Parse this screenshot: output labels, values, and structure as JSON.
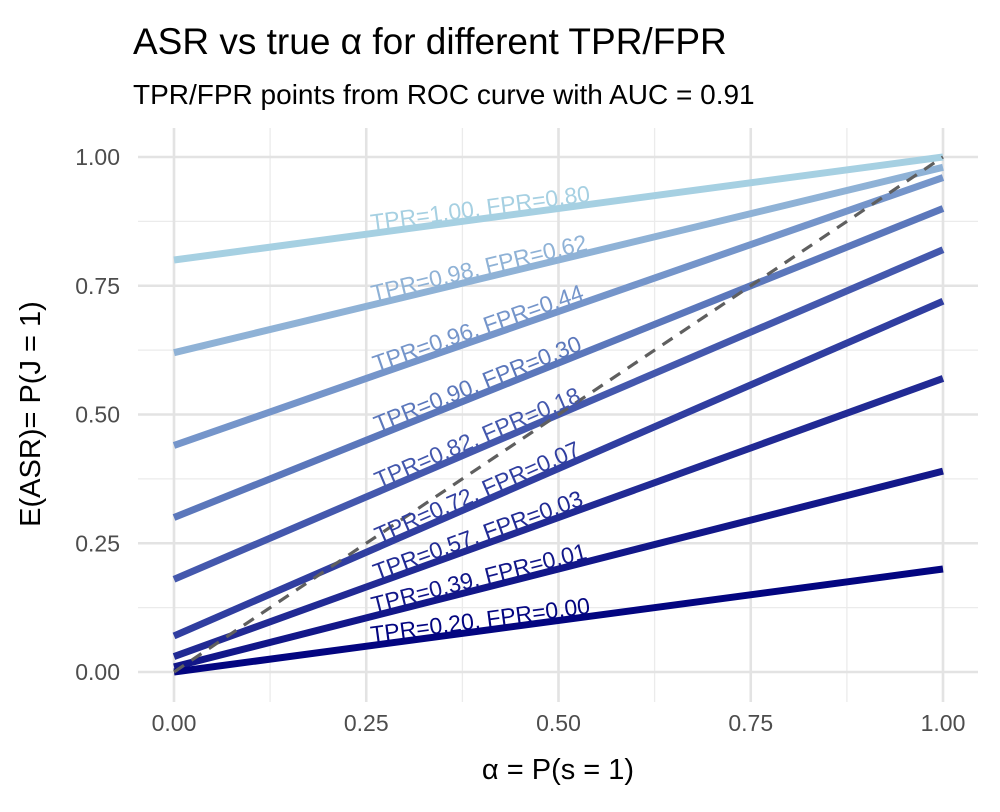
{
  "chart_data": {
    "type": "line",
    "title": "ASR vs true α for different TPR/FPR",
    "subtitle": "TPR/FPR points from ROC curve with AUC = 0.91",
    "xlabel": "α = P(s = 1)",
    "ylabel": "E(ASR)= P(J = 1)",
    "xlim": [
      0,
      1
    ],
    "ylim": [
      0,
      1
    ],
    "x_ticks": [
      "0.00",
      "0.25",
      "0.50",
      "0.75",
      "1.00"
    ],
    "y_ticks": [
      "0.00",
      "0.25",
      "0.50",
      "0.75",
      "1.00"
    ],
    "grid": true,
    "reference_line": {
      "name": "y = x",
      "style": "dashed",
      "color": "#5f5f5f",
      "x": [
        0,
        1
      ],
      "y": [
        0,
        1
      ]
    },
    "series": [
      {
        "name": "TPR=1.00, FPR=0.80",
        "label": "TPR=1.00, FPR=0.80",
        "tpr": 1.0,
        "fpr": 0.8,
        "color": "#a6d0e2",
        "x": [
          0,
          1
        ],
        "y": [
          0.8,
          1.0
        ]
      },
      {
        "name": "TPR=0.98, FPR=0.62",
        "label": "TPR=0.98, FPR=0.62",
        "tpr": 0.98,
        "fpr": 0.62,
        "color": "#8fb2d6",
        "x": [
          0,
          1
        ],
        "y": [
          0.62,
          0.98
        ]
      },
      {
        "name": "TPR=0.96, FPR=0.44",
        "label": "TPR=0.96, FPR=0.44",
        "tpr": 0.96,
        "fpr": 0.44,
        "color": "#7595ca",
        "x": [
          0,
          1
        ],
        "y": [
          0.44,
          0.96
        ]
      },
      {
        "name": "TPR=0.90, FPR=0.30",
        "label": "TPR=0.90, FPR=0.30",
        "tpr": 0.9,
        "fpr": 0.3,
        "color": "#5b77bb",
        "x": [
          0,
          1
        ],
        "y": [
          0.3,
          0.9
        ]
      },
      {
        "name": "TPR=0.82, FPR=0.18",
        "label": "TPR=0.82, FPR=0.18",
        "tpr": 0.82,
        "fpr": 0.18,
        "color": "#4458ad",
        "x": [
          0,
          1
        ],
        "y": [
          0.18,
          0.82
        ]
      },
      {
        "name": "TPR=0.72, FPR=0.07",
        "label": "TPR=0.72, FPR=0.07",
        "tpr": 0.72,
        "fpr": 0.07,
        "color": "#303ea0",
        "x": [
          0,
          1
        ],
        "y": [
          0.07,
          0.72
        ]
      },
      {
        "name": "TPR=0.57, FPR=0.03",
        "label": "TPR=0.57, FPR=0.03",
        "tpr": 0.57,
        "fpr": 0.03,
        "color": "#212a94",
        "x": [
          0,
          1
        ],
        "y": [
          0.03,
          0.57
        ]
      },
      {
        "name": "TPR=0.39, FPR=0.01",
        "label": "TPR=0.39, FPR=0.01",
        "tpr": 0.39,
        "fpr": 0.01,
        "color": "#121789",
        "x": [
          0,
          1
        ],
        "y": [
          0.01,
          0.39
        ]
      },
      {
        "name": "TPR=0.20, FPR=0.00",
        "label": "TPR=0.20, FPR=0.00",
        "tpr": 0.2,
        "fpr": 0.0,
        "color": "#030580",
        "x": [
          0,
          1
        ],
        "y": [
          0.0,
          0.2
        ]
      }
    ]
  }
}
